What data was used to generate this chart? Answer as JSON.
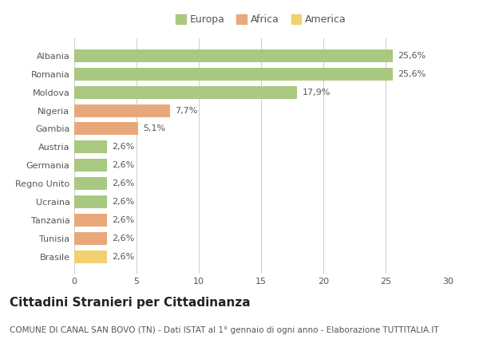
{
  "categories": [
    "Albania",
    "Romania",
    "Moldova",
    "Nigeria",
    "Gambia",
    "Austria",
    "Germania",
    "Regno Unito",
    "Ucraina",
    "Tanzania",
    "Tunisia",
    "Brasile"
  ],
  "values": [
    25.6,
    25.6,
    17.9,
    7.7,
    5.1,
    2.6,
    2.6,
    2.6,
    2.6,
    2.6,
    2.6,
    2.6
  ],
  "labels": [
    "25,6%",
    "25,6%",
    "17,9%",
    "7,7%",
    "5,1%",
    "2,6%",
    "2,6%",
    "2,6%",
    "2,6%",
    "2,6%",
    "2,6%",
    "2,6%"
  ],
  "continents": [
    "Europa",
    "Europa",
    "Europa",
    "Africa",
    "Africa",
    "Europa",
    "Europa",
    "Europa",
    "Europa",
    "Africa",
    "Africa",
    "America"
  ],
  "colors": {
    "Europa": "#a8c97f",
    "Africa": "#e8a87c",
    "America": "#f0d070"
  },
  "legend_order": [
    "Europa",
    "Africa",
    "America"
  ],
  "xlim": [
    0,
    30
  ],
  "xticks": [
    0,
    5,
    10,
    15,
    20,
    25,
    30
  ],
  "title": "Cittadini Stranieri per Cittadinanza",
  "subtitle": "COMUNE DI CANAL SAN BOVO (TN) - Dati ISTAT al 1° gennaio di ogni anno - Elaborazione TUTTITALIA.IT",
  "title_fontsize": 11,
  "subtitle_fontsize": 7.5,
  "bar_height": 0.7,
  "background_color": "#ffffff",
  "grid_color": "#cccccc",
  "label_fontsize": 8,
  "tick_fontsize": 8,
  "legend_fontsize": 9
}
